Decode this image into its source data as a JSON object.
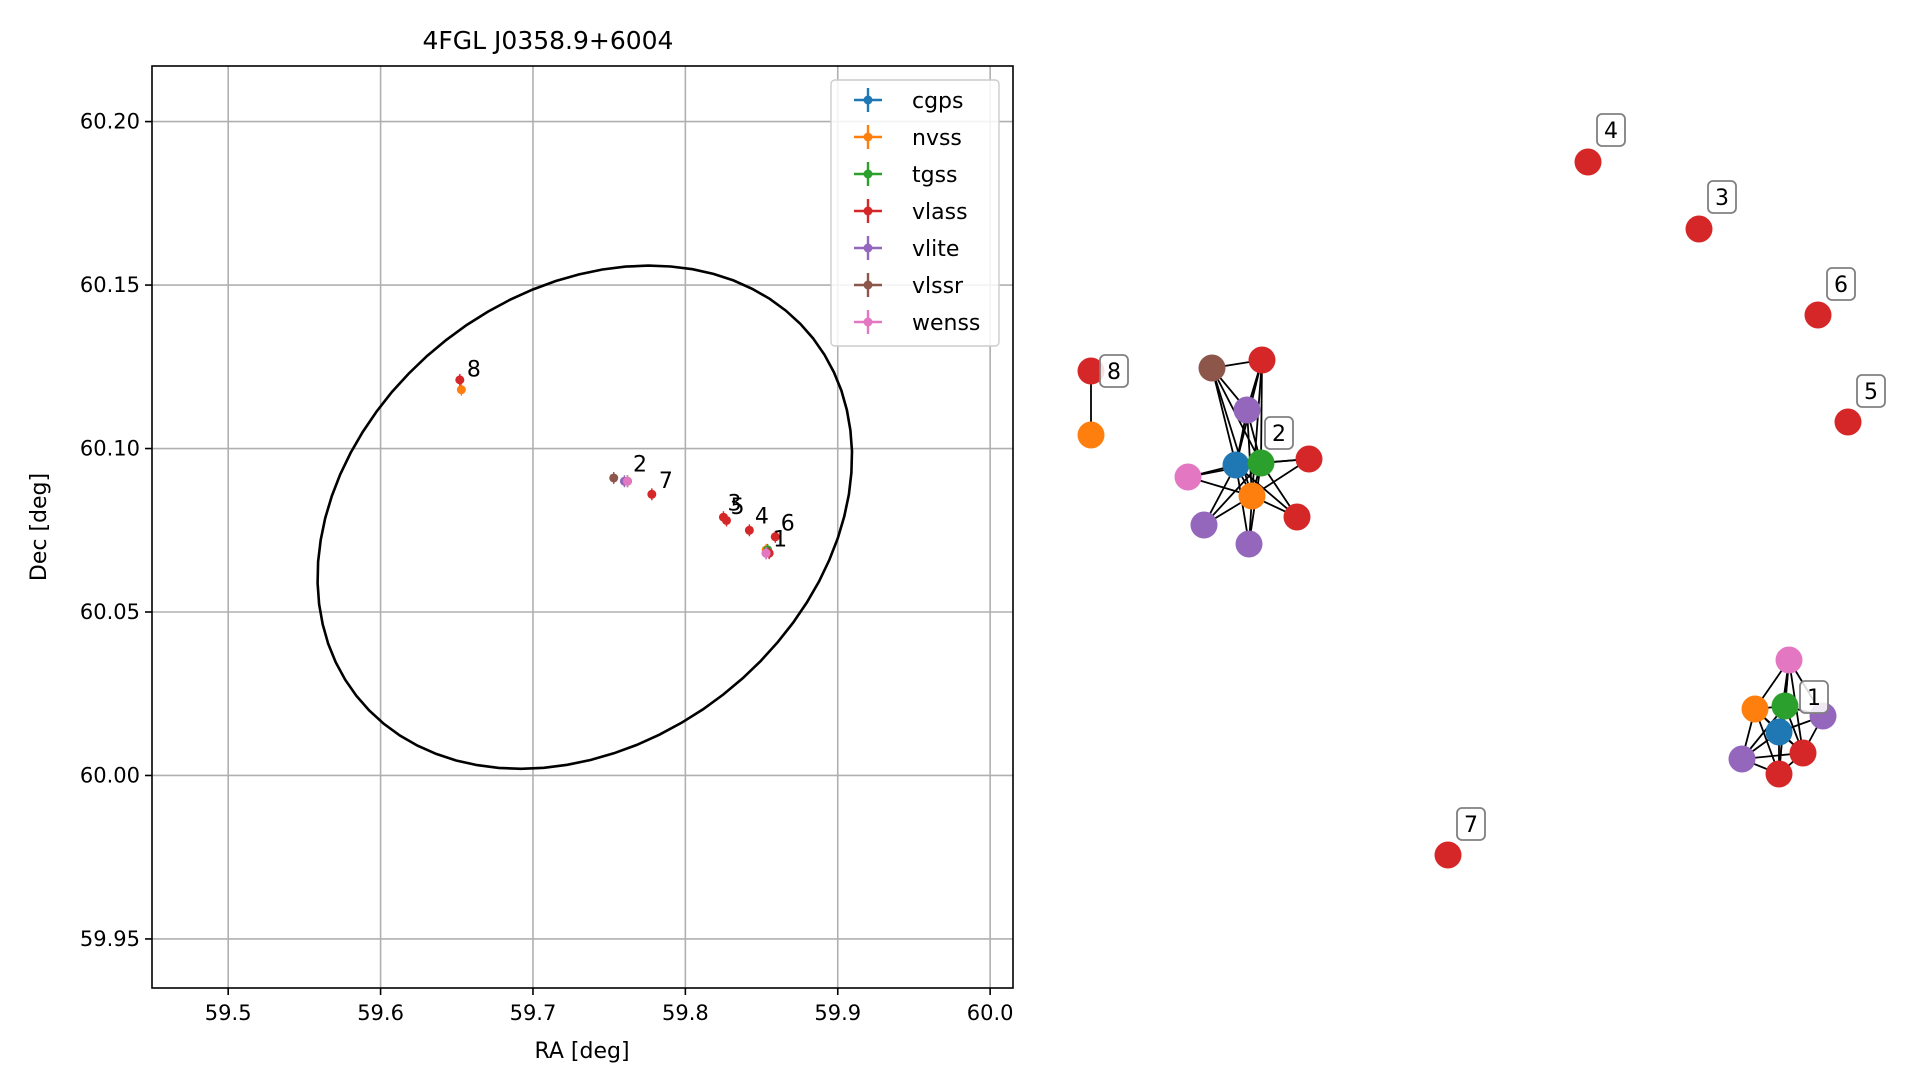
{
  "chart_data": [
    {
      "type": "scatter",
      "title": "4FGL J0358.9+6004",
      "xlabel": "RA [deg]",
      "ylabel": "Dec [deg]",
      "xlim": [
        59.45,
        60.015
      ],
      "ylim": [
        59.935,
        60.217
      ],
      "xticks": [
        "59.5",
        "59.6",
        "59.7",
        "59.8",
        "59.9",
        "60.0"
      ],
      "yticks": [
        "59.95",
        "60.00",
        "60.05",
        "60.10",
        "60.15",
        "60.20"
      ],
      "grid": true,
      "legend_position": "top-right",
      "series": [
        {
          "name": "cgps",
          "color": "#1f77b4",
          "points": [
            {
              "x": 59.853,
              "y": 60.068
            }
          ]
        },
        {
          "name": "nvss",
          "color": "#ff7f0e",
          "points": [
            {
              "x": 59.653,
              "y": 60.118
            },
            {
              "x": 59.762,
              "y": 60.09
            },
            {
              "x": 59.853,
              "y": 60.069
            }
          ]
        },
        {
          "name": "tgss",
          "color": "#2ca02c",
          "points": [
            {
              "x": 59.762,
              "y": 60.09
            },
            {
              "x": 59.854,
              "y": 60.069
            }
          ]
        },
        {
          "name": "vlass",
          "color": "#d62728",
          "points": [
            {
              "x": 59.652,
              "y": 60.121
            },
            {
              "x": 59.778,
              "y": 60.086
            },
            {
              "x": 59.825,
              "y": 60.079
            },
            {
              "x": 59.827,
              "y": 60.078
            },
            {
              "x": 59.842,
              "y": 60.075
            },
            {
              "x": 59.859,
              "y": 60.073
            },
            {
              "x": 59.855,
              "y": 60.068
            }
          ]
        },
        {
          "name": "vlite",
          "color": "#9467bd",
          "points": [
            {
              "x": 59.76,
              "y": 60.09
            },
            {
              "x": 59.853,
              "y": 60.068
            }
          ]
        },
        {
          "name": "vlssr",
          "color": "#8c564b",
          "points": [
            {
              "x": 59.753,
              "y": 60.091
            }
          ]
        },
        {
          "name": "wenss",
          "color": "#e377c2",
          "points": [
            {
              "x": 59.762,
              "y": 60.09
            },
            {
              "x": 59.853,
              "y": 60.068
            }
          ]
        }
      ],
      "annotations": [
        {
          "text": "8",
          "x": 59.654,
          "y": 60.122
        },
        {
          "text": "2",
          "x": 59.763,
          "y": 60.093
        },
        {
          "text": "7",
          "x": 59.78,
          "y": 60.088
        },
        {
          "text": "3",
          "x": 59.825,
          "y": 60.081
        },
        {
          "text": "5",
          "x": 59.827,
          "y": 60.08
        },
        {
          "text": "4",
          "x": 59.843,
          "y": 60.077
        },
        {
          "text": "6",
          "x": 59.86,
          "y": 60.075
        },
        {
          "text": "1",
          "x": 59.855,
          "y": 60.07
        }
      ],
      "ellipse": {
        "center": [
          59.734,
          60.079
        ],
        "color": "#000000"
      }
    },
    {
      "type": "network-graph",
      "node_colors": {
        "cgps": "#1f77b4",
        "nvss": "#ff7f0e",
        "tgss": "#2ca02c",
        "vlass": "#d62728",
        "vlite": "#9467bd",
        "vlssr": "#8c564b",
        "wenss": "#e377c2"
      },
      "labels": [
        "1",
        "2",
        "3",
        "4",
        "5",
        "6",
        "7",
        "8"
      ]
    }
  ]
}
